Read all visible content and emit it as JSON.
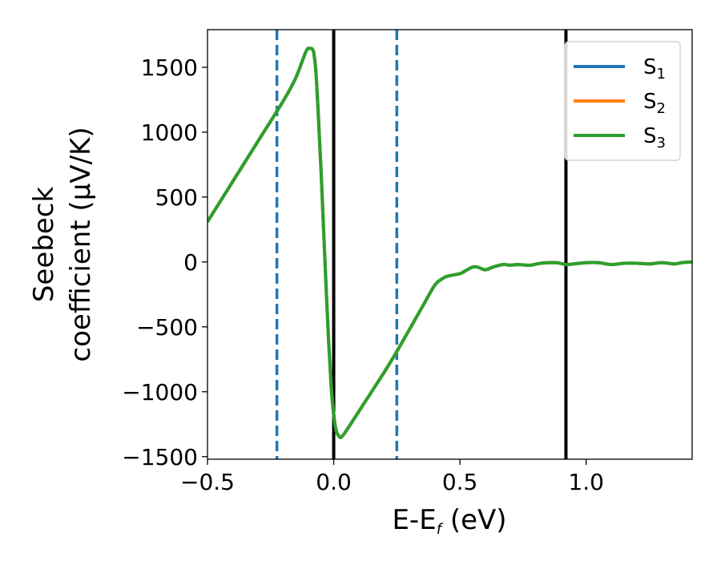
{
  "chart_data": {
    "type": "line",
    "xlabel": "E-E",
    "xlabel_sub": "f",
    "xlabel_unit": " (eV)",
    "ylabel_lines": [
      "Seebeck",
      "coefficient  (μV/K)"
    ],
    "xlim": [
      -0.5,
      1.42
    ],
    "ylim": [
      -1520,
      1790
    ],
    "xticks": [
      -0.5,
      0.0,
      0.5,
      1.0
    ],
    "xtick_labels": [
      "−0.5",
      "0.0",
      "0.5",
      "1.0"
    ],
    "yticks": [
      -1500,
      -1000,
      -500,
      0,
      500,
      1000,
      1500
    ],
    "ytick_labels": [
      "−1500",
      "−1000",
      "−500",
      "0",
      "500",
      "1000",
      "1500"
    ],
    "legend_position": "top-right",
    "series": [
      {
        "name": "S",
        "sub": "1",
        "color": "#1f77b4"
      },
      {
        "name": "S",
        "sub": "2",
        "color": "#ff7f0e"
      },
      {
        "name": "S",
        "sub": "3",
        "color": "#2ca02c"
      }
    ],
    "curve": {
      "x": [
        -0.5,
        -0.4,
        -0.3,
        -0.2,
        -0.15,
        -0.11,
        -0.095,
        -0.08,
        -0.07,
        -0.06,
        -0.05,
        -0.04,
        -0.03,
        -0.02,
        -0.01,
        0.0,
        0.01,
        0.02,
        0.03,
        0.05,
        0.1,
        0.2,
        0.25,
        0.3,
        0.35,
        0.4,
        0.43,
        0.45,
        0.5,
        0.52,
        0.55,
        0.57,
        0.6,
        0.63,
        0.67,
        0.7,
        0.73,
        0.78,
        0.82,
        0.88,
        0.92,
        0.95,
        1.0,
        1.05,
        1.1,
        1.15,
        1.2,
        1.25,
        1.3,
        1.35,
        1.38,
        1.42
      ],
      "y": [
        310,
        620,
        930,
        1240,
        1420,
        1620,
        1645,
        1620,
        1450,
        1100,
        700,
        250,
        -200,
        -620,
        -960,
        -1180,
        -1300,
        -1340,
        -1350,
        -1300,
        -1150,
        -850,
        -690,
        -520,
        -350,
        -180,
        -130,
        -110,
        -90,
        -70,
        -40,
        -40,
        -60,
        -40,
        -20,
        -25,
        -20,
        -25,
        -10,
        -5,
        -20,
        -15,
        -5,
        -5,
        -20,
        -10,
        -10,
        -15,
        -5,
        -15,
        -5,
        0
      ]
    },
    "vlines": [
      {
        "x": -0.225,
        "style": "dashed",
        "color": "#1f77b4"
      },
      {
        "x": 0.0,
        "style": "solid",
        "color": "#000000"
      },
      {
        "x": 0.25,
        "style": "dashed",
        "color": "#1f77b4"
      },
      {
        "x": 0.92,
        "style": "solid",
        "color": "#000000"
      }
    ]
  }
}
